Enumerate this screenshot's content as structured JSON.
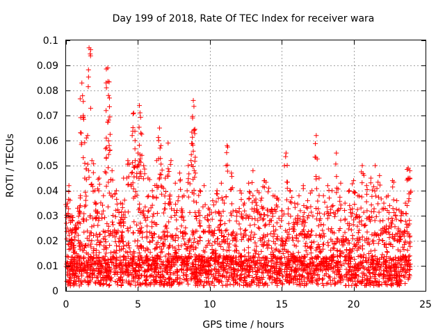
{
  "chart_data": {
    "type": "scatter",
    "title": "Day 199 of 2018, Rate Of TEC Index for receiver wara",
    "xlabel": "GPS time / hours",
    "ylabel": "ROTI / TECUs",
    "xlim": [
      0,
      25
    ],
    "ylim": [
      0,
      0.1
    ],
    "xticks": [
      0,
      5,
      10,
      15,
      20,
      25
    ],
    "yticks": [
      0,
      0.01,
      0.02,
      0.03,
      0.04,
      0.05,
      0.06,
      0.07,
      0.08,
      0.09,
      0.1
    ],
    "xtick_labels": [
      "0",
      "5",
      "10",
      "15",
      "20",
      "25"
    ],
    "ytick_labels": [
      "0",
      "0.01",
      "0.02",
      "0.03",
      "0.04",
      "0.05",
      "0.06",
      "0.07",
      "0.08",
      "0.09",
      "0.1"
    ],
    "grid": true,
    "marker": "+",
    "colors": {
      "points": "#ff0000",
      "grid": "#a0a0a0",
      "axes": "#000000"
    },
    "series": [
      {
        "name": "ROTI",
        "x": [
          0.1,
          0.2,
          0.3,
          0.4,
          0.6,
          0.8,
          1.0,
          1.1,
          1.2,
          1.3,
          1.5,
          1.6,
          1.8,
          2.0,
          2.3,
          2.6,
          2.8,
          2.9,
          2.95,
          3.0,
          3.2,
          3.5,
          3.8,
          4.0,
          4.3,
          4.6,
          4.7,
          4.8,
          5.0,
          5.1,
          5.2,
          5.4,
          5.7,
          6.0,
          6.3,
          6.5,
          6.6,
          6.9,
          7.1,
          7.3,
          7.6,
          7.9,
          8.2,
          8.5,
          8.8,
          8.85,
          8.9,
          9.0,
          9.3,
          9.6,
          9.9,
          10.2,
          10.5,
          10.8,
          11.0,
          11.2,
          11.5,
          11.8,
          12.1,
          12.4,
          12.7,
          13.0,
          13.3,
          13.6,
          13.8,
          14.1,
          14.4,
          14.7,
          15.0,
          15.3,
          15.6,
          15.9,
          16.2,
          16.5,
          16.8,
          17.1,
          17.4,
          17.6,
          17.9,
          18.2,
          18.5,
          18.8,
          19.1,
          19.4,
          19.7,
          20.0,
          20.3,
          20.6,
          20.9,
          21.2,
          21.5,
          21.8,
          22.1,
          22.4,
          22.7,
          23.0,
          23.3,
          23.6,
          23.8,
          23.9
        ],
        "y": [
          0.035,
          0.042,
          0.028,
          0.03,
          0.025,
          0.033,
          0.038,
          0.083,
          0.07,
          0.045,
          0.062,
          0.097,
          0.052,
          0.04,
          0.045,
          0.038,
          0.061,
          0.089,
          0.078,
          0.058,
          0.048,
          0.04,
          0.035,
          0.045,
          0.052,
          0.062,
          0.071,
          0.06,
          0.055,
          0.074,
          0.063,
          0.05,
          0.045,
          0.04,
          0.052,
          0.065,
          0.058,
          0.045,
          0.059,
          0.052,
          0.043,
          0.047,
          0.038,
          0.05,
          0.069,
          0.076,
          0.064,
          0.047,
          0.04,
          0.042,
          0.033,
          0.036,
          0.04,
          0.043,
          0.035,
          0.058,
          0.047,
          0.032,
          0.04,
          0.035,
          0.043,
          0.048,
          0.04,
          0.037,
          0.044,
          0.041,
          0.038,
          0.037,
          0.032,
          0.055,
          0.04,
          0.035,
          0.038,
          0.042,
          0.036,
          0.04,
          0.062,
          0.045,
          0.038,
          0.042,
          0.04,
          0.055,
          0.043,
          0.035,
          0.04,
          0.044,
          0.038,
          0.05,
          0.042,
          0.045,
          0.05,
          0.046,
          0.035,
          0.038,
          0.044,
          0.036,
          0.03,
          0.035,
          0.049,
          0.045
        ]
      }
    ]
  }
}
